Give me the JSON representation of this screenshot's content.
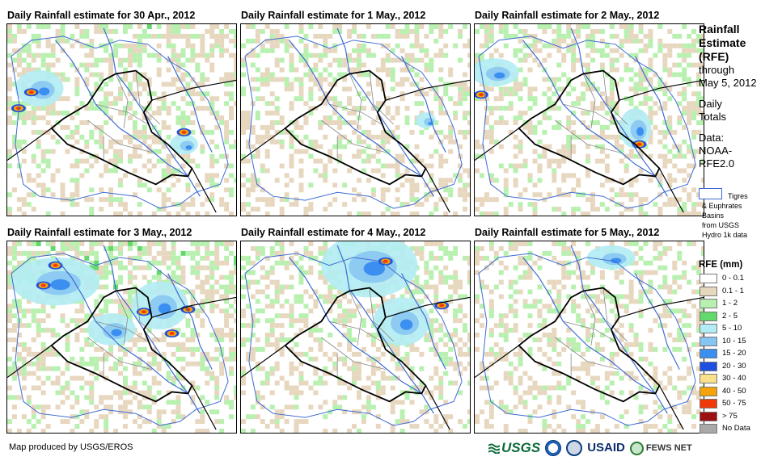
{
  "panels": [
    {
      "title": "Daily Rainfall estimate for 30 Apr., 2012"
    },
    {
      "title": "Daily Rainfall estimate for 1 May., 2012"
    },
    {
      "title": "Daily Rainfall estimate for 2 May., 2012"
    },
    {
      "title": "Daily Rainfall estimate for 3 May., 2012"
    },
    {
      "title": "Daily Rainfall estimate for 4 May., 2012"
    },
    {
      "title": "Daily Rainfall estimate for 5 May., 2012"
    }
  ],
  "legend": {
    "title_lines": [
      "Rainfall",
      "Estimate",
      "(RFE)"
    ],
    "through_lines": [
      "through",
      "May 5, 2012"
    ],
    "totals_lines": [
      "Daily",
      "Totals"
    ],
    "data_lines": [
      "Data:",
      "NOAA-",
      "RFE2.0"
    ],
    "basin_lines": [
      "Tigres",
      "& Euphrates",
      "Basins",
      "from USGS",
      "Hydro 1k data"
    ],
    "rfe_title": "RFE (mm)",
    "classes": [
      {
        "label": "0 - 0.1",
        "color": "#ffffff"
      },
      {
        "label": "0.1 - 1",
        "color": "#e7d7bf"
      },
      {
        "label": "1 - 2",
        "color": "#b8f0b0"
      },
      {
        "label": "2 - 5",
        "color": "#64d96b"
      },
      {
        "label": "5 - 10",
        "color": "#b3ecf4"
      },
      {
        "label": "10 - 15",
        "color": "#86c4f2"
      },
      {
        "label": "15 - 20",
        "color": "#3b8ff0"
      },
      {
        "label": "20 - 30",
        "color": "#1e4fe0"
      },
      {
        "label": "30 - 40",
        "color": "#f9e08a"
      },
      {
        "label": "40 - 50",
        "color": "#f5a30a"
      },
      {
        "label": "50 - 75",
        "color": "#f03a0a"
      },
      {
        "label": "> 75",
        "color": "#9b1111"
      },
      {
        "label": "No Data",
        "color": "#a9a9a9"
      }
    ]
  },
  "footer": {
    "credit": "Map produced by USGS/EROS",
    "logos": {
      "usgs": "USGS",
      "usaid": "USAID",
      "fews": "FEWS NET"
    }
  }
}
